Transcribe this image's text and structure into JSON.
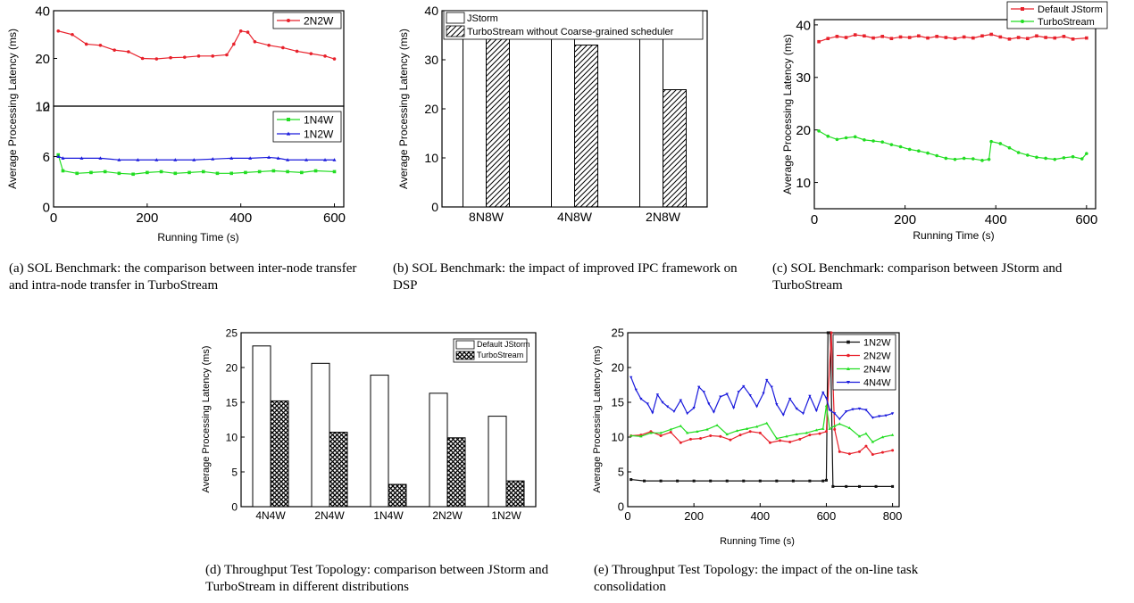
{
  "captions": {
    "a": "(a) SOL Benchmark: the comparison between inter-node transfer and intra-node transfer in TurboStream",
    "b": "(b) SOL Benchmark: the impact of improved IPC framework on DSP",
    "c": "(c) SOL Benchmark: comparison between JStorm and TurboStream",
    "d": "(d) Throughput Test Topology: comparison between JStorm and TurboStream in different distributions",
    "e": "(e) Throughput Test Topology: the impact of the on-line task consolidation"
  },
  "chart_data": [
    {
      "id": "a",
      "type": "line",
      "ylabel": "Average Processing Latency (ms)",
      "xlabel": "Running Time (s)",
      "xlim": [
        0,
        620
      ],
      "xticks": [
        0,
        200,
        400,
        600
      ],
      "panels": [
        {
          "ylim": [
            0,
            40
          ],
          "yticks": [
            0,
            20,
            40
          ],
          "series": [
            {
              "name": "2N2W",
              "color": "#e8212b",
              "marker": "circle",
              "x": [
                10,
                40,
                70,
                100,
                130,
                160,
                190,
                220,
                250,
                280,
                310,
                340,
                370,
                385,
                400,
                415,
                430,
                460,
                490,
                520,
                550,
                580,
                600
              ],
              "y": [
                31.5,
                30,
                26,
                25.5,
                23.5,
                22.8,
                20,
                19.8,
                20.3,
                20.5,
                21,
                21,
                21.5,
                26,
                31.5,
                31,
                27,
                25.5,
                24.5,
                23,
                22,
                21,
                19.8
              ]
            }
          ]
        },
        {
          "ylim": [
            0,
            12
          ],
          "yticks": [
            0,
            6,
            12
          ],
          "series": [
            {
              "name": "1N4W",
              "color": "#22dd22",
              "marker": "square",
              "x": [
                10,
                20,
                50,
                80,
                110,
                140,
                170,
                200,
                230,
                260,
                290,
                320,
                350,
                380,
                410,
                440,
                470,
                500,
                530,
                560,
                600
              ],
              "y": [
                6.2,
                4.3,
                4.0,
                4.1,
                4.2,
                4.0,
                3.9,
                4.1,
                4.2,
                4.0,
                4.1,
                4.2,
                4.0,
                4.0,
                4.1,
                4.2,
                4.3,
                4.2,
                4.1,
                4.3,
                4.2
              ]
            },
            {
              "name": "1N2W",
              "color": "#1a1adc",
              "marker": "triangle",
              "x": [
                10,
                20,
                60,
                100,
                140,
                180,
                220,
                260,
                300,
                340,
                380,
                420,
                460,
                480,
                500,
                540,
                580,
                600
              ],
              "y": [
                6.0,
                5.8,
                5.8,
                5.8,
                5.6,
                5.6,
                5.6,
                5.6,
                5.6,
                5.7,
                5.8,
                5.8,
                5.9,
                5.8,
                5.6,
                5.6,
                5.6,
                5.6
              ]
            }
          ]
        }
      ]
    },
    {
      "id": "b",
      "type": "bar",
      "ylabel": "Average Processing Latency (ms)",
      "categories": [
        "8N8W",
        "4N8W",
        "2N8W"
      ],
      "ylim": [
        0,
        40
      ],
      "yticks": [
        0,
        10,
        20,
        30,
        40
      ],
      "series": [
        {
          "name": "JStorm",
          "pattern": "plain",
          "values": [
            37.8,
            36.9,
            36.0
          ]
        },
        {
          "name": "TurboStream without Coarse-grained scheduler",
          "pattern": "hatch",
          "values": [
            37.2,
            33.0,
            23.9
          ]
        }
      ]
    },
    {
      "id": "c",
      "type": "line",
      "ylabel": "Average Processing Latency (ms)",
      "xlabel": "Running Time (s)",
      "xlim": [
        0,
        620
      ],
      "ylim": [
        5,
        41
      ],
      "xticks": [
        0,
        200,
        400,
        600
      ],
      "yticks": [
        10,
        20,
        30,
        40
      ],
      "series": [
        {
          "name": "Default JStorm",
          "color": "#e8212b",
          "marker": "square",
          "x": [
            10,
            30,
            50,
            70,
            90,
            110,
            130,
            150,
            170,
            190,
            210,
            230,
            250,
            270,
            290,
            310,
            330,
            350,
            370,
            390,
            410,
            430,
            450,
            470,
            490,
            510,
            530,
            550,
            570,
            600
          ],
          "y": [
            36.8,
            37.4,
            37.8,
            37.6,
            38.1,
            37.9,
            37.5,
            37.8,
            37.4,
            37.7,
            37.6,
            37.9,
            37.5,
            37.8,
            37.6,
            37.4,
            37.7,
            37.5,
            37.9,
            38.2,
            37.7,
            37.3,
            37.6,
            37.4,
            37.9,
            37.6,
            37.5,
            37.8,
            37.3,
            37.5
          ]
        },
        {
          "name": "TurboStream",
          "color": "#22dd22",
          "marker": "circle",
          "x": [
            10,
            30,
            50,
            70,
            90,
            110,
            130,
            150,
            170,
            190,
            210,
            230,
            250,
            270,
            290,
            310,
            330,
            350,
            370,
            385,
            390,
            410,
            430,
            450,
            470,
            490,
            510,
            530,
            550,
            570,
            590,
            600
          ],
          "y": [
            19.8,
            18.8,
            18.2,
            18.5,
            18.7,
            18.1,
            17.9,
            17.7,
            17.2,
            16.8,
            16.3,
            16.0,
            15.6,
            15.1,
            14.6,
            14.4,
            14.6,
            14.5,
            14.2,
            14.4,
            17.8,
            17.4,
            16.6,
            15.7,
            15.2,
            14.8,
            14.6,
            14.4,
            14.7,
            14.9,
            14.5,
            15.5
          ]
        }
      ]
    },
    {
      "id": "d",
      "type": "bar",
      "ylabel": "Average Processing Latency (ms)",
      "categories": [
        "4N4W",
        "2N4W",
        "1N4W",
        "2N2W",
        "1N2W"
      ],
      "ylim": [
        0,
        25
      ],
      "yticks": [
        0,
        5,
        10,
        15,
        20,
        25
      ],
      "series": [
        {
          "name": "Default JStorm",
          "pattern": "plain",
          "values": [
            23.1,
            20.6,
            18.9,
            16.3,
            13.0
          ]
        },
        {
          "name": "TurboStream",
          "pattern": "crosshatch",
          "values": [
            15.2,
            10.7,
            3.2,
            9.9,
            3.7
          ]
        }
      ]
    },
    {
      "id": "e",
      "type": "line",
      "ylabel": "Average Processing Latency (ms)",
      "xlabel": "Running Time (s)",
      "xlim": [
        0,
        820
      ],
      "ylim": [
        0,
        25
      ],
      "xticks": [
        0,
        200,
        400,
        600,
        800
      ],
      "yticks": [
        0,
        5,
        10,
        15,
        20,
        25
      ],
      "series": [
        {
          "name": "1N2W",
          "color": "#111111",
          "marker": "square",
          "x": [
            10,
            50,
            100,
            150,
            200,
            250,
            300,
            350,
            400,
            450,
            500,
            550,
            590,
            600,
            605,
            612,
            620,
            660,
            700,
            750,
            800
          ],
          "y": [
            3.9,
            3.7,
            3.7,
            3.7,
            3.7,
            3.7,
            3.7,
            3.7,
            3.7,
            3.7,
            3.7,
            3.7,
            3.7,
            3.8,
            25,
            25,
            2.9,
            2.9,
            2.9,
            2.9,
            2.9
          ]
        },
        {
          "name": "2N2W",
          "color": "#e8212b",
          "marker": "circle",
          "x": [
            10,
            40,
            70,
            100,
            130,
            160,
            190,
            220,
            250,
            280,
            310,
            340,
            370,
            400,
            430,
            460,
            490,
            520,
            550,
            580,
            600,
            615,
            625,
            640,
            670,
            700,
            720,
            740,
            770,
            800
          ],
          "y": [
            10.2,
            10.3,
            10.8,
            10.2,
            10.7,
            9.2,
            9.7,
            9.8,
            10.2,
            10.1,
            9.6,
            10.3,
            10.8,
            10.6,
            9.2,
            9.5,
            9.3,
            9.7,
            10.3,
            10.5,
            10.8,
            25,
            11.1,
            7.9,
            7.6,
            7.9,
            8.7,
            7.5,
            7.8,
            8.1
          ]
        },
        {
          "name": "2N4W",
          "color": "#22dd22",
          "marker": "triangle",
          "x": [
            10,
            40,
            70,
            100,
            130,
            160,
            180,
            210,
            240,
            270,
            300,
            330,
            360,
            390,
            420,
            450,
            480,
            510,
            540,
            570,
            590,
            600,
            610,
            625,
            640,
            670,
            700,
            720,
            740,
            770,
            800
          ],
          "y": [
            10.2,
            10.1,
            10.6,
            10.6,
            11.1,
            11.6,
            10.6,
            10.8,
            11.1,
            11.7,
            10.4,
            10.9,
            11.2,
            11.5,
            12.0,
            9.8,
            10.1,
            10.4,
            10.6,
            11.0,
            11.2,
            14.5,
            11.2,
            11.6,
            11.9,
            11.3,
            10.1,
            10.5,
            9.3,
            10.0,
            10.3
          ]
        },
        {
          "name": "4N4W",
          "color": "#1a1adc",
          "marker": "triangle-down",
          "x": [
            10,
            25,
            40,
            60,
            75,
            90,
            105,
            120,
            140,
            160,
            180,
            200,
            215,
            230,
            245,
            260,
            280,
            300,
            320,
            335,
            350,
            370,
            390,
            410,
            420,
            435,
            450,
            470,
            490,
            510,
            530,
            550,
            570,
            590,
            600,
            610,
            625,
            640,
            660,
            680,
            700,
            720,
            740,
            760,
            780,
            800
          ],
          "y": [
            18.6,
            16.8,
            15.5,
            14.8,
            13.5,
            16.1,
            15.0,
            14.4,
            13.7,
            15.3,
            13.4,
            14.2,
            17.2,
            16.5,
            14.8,
            13.6,
            15.8,
            16.2,
            14.2,
            16.5,
            17.3,
            16.0,
            14.4,
            16.3,
            18.2,
            17.2,
            14.7,
            13.2,
            15.5,
            14.1,
            13.4,
            15.9,
            13.8,
            16.4,
            15.6,
            13.9,
            13.4,
            12.6,
            13.7,
            14.0,
            14.1,
            13.9,
            12.8,
            13.0,
            13.1,
            13.4
          ]
        }
      ]
    }
  ]
}
